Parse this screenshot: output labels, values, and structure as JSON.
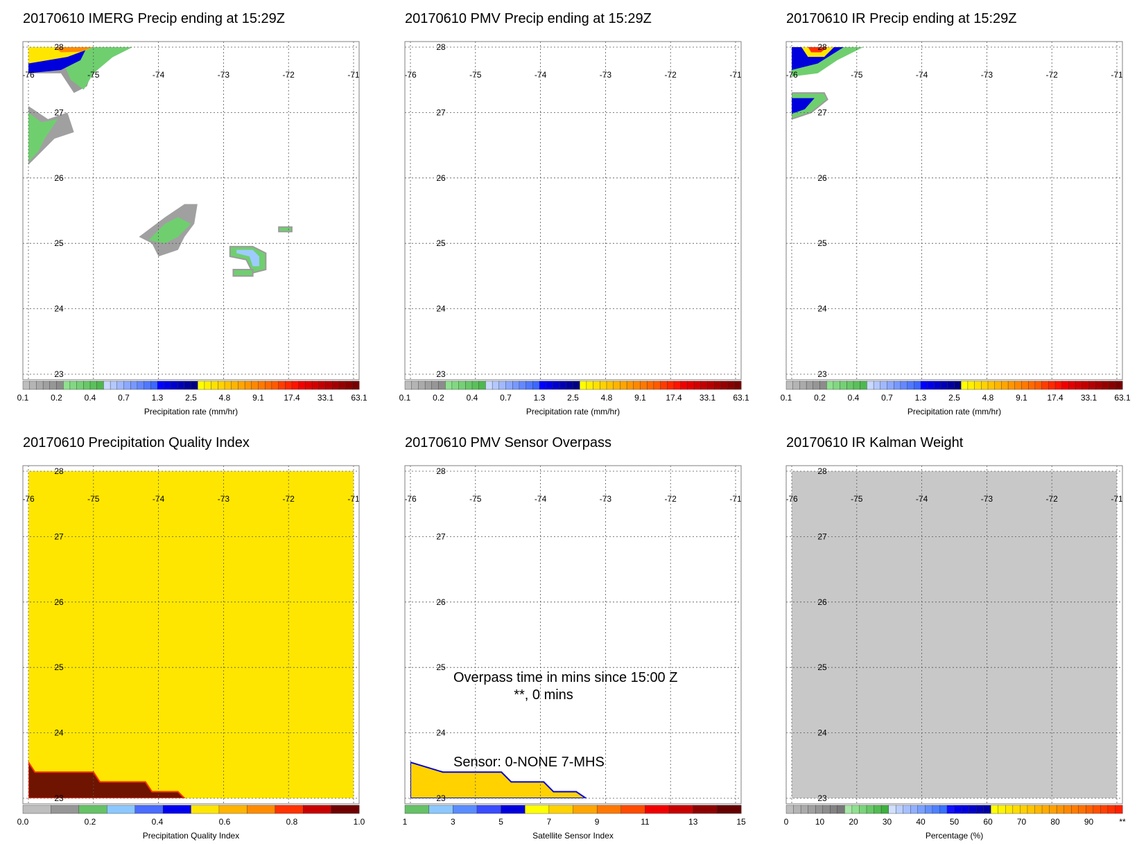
{
  "panels": [
    {
      "id": "imerg",
      "title": "20170610 IMERG Precip ending at 15:29Z",
      "colorbar": "precip"
    },
    {
      "id": "pmv",
      "title": "20170610 PMV Precip ending at 15:29Z",
      "colorbar": "precip"
    },
    {
      "id": "ir",
      "title": "20170610 IR Precip ending at 15:29Z",
      "colorbar": "precip"
    },
    {
      "id": "pqi",
      "title": "20170610 Precipitation Quality Index",
      "colorbar": "quality"
    },
    {
      "id": "overpass",
      "title": "20170610 PMV Sensor Overpass",
      "colorbar": "sensor",
      "annotations": {
        "line1": "Overpass time in mins since 15:00 Z",
        "line2": "**, 0 mins",
        "line3": "Sensor:   0-NONE  7-MHS"
      }
    },
    {
      "id": "kalman",
      "title": "20170610 IR Kalman Weight",
      "colorbar": "percent"
    }
  ],
  "map_axes": {
    "lon_ticks": [
      "-76",
      "-75",
      "-74",
      "-73",
      "-72",
      "-71"
    ],
    "lat_ticks": [
      "28",
      "27",
      "26",
      "25",
      "24",
      "23"
    ],
    "lon_range": [
      -76,
      -71
    ],
    "lat_range": [
      23,
      28
    ],
    "grid": true
  },
  "colorbars": {
    "precip": {
      "label": "Precipitation rate (mm/hr)",
      "tick_labels": [
        "0.1",
        "0.2",
        "0.4",
        "0.7",
        "1.3",
        "2.5",
        "4.8",
        "9.1",
        "17.4",
        "33.1",
        "63.1"
      ],
      "colors": [
        "#bebebe",
        "#b4b4b4",
        "#aaaaaa",
        "#a0a0a0",
        "#969696",
        "#8c8c8c",
        "#8fe08f",
        "#82d882",
        "#75d075",
        "#68c868",
        "#5bc05b",
        "#4eb84e",
        "#c8d8ff",
        "#b4c8ff",
        "#a0b8ff",
        "#8ca8ff",
        "#7898ff",
        "#6488ff",
        "#5078ff",
        "#3c68ff",
        "#0000ff",
        "#0000e6",
        "#0000cd",
        "#0000b4",
        "#00009b",
        "#000082",
        "#ffff00",
        "#fff000",
        "#ffe100",
        "#ffd200",
        "#ffc300",
        "#ffb400",
        "#ffa500",
        "#ff9600",
        "#ff8700",
        "#ff7800",
        "#ff6900",
        "#ff5a00",
        "#ff3c00",
        "#ff2800",
        "#ff1400",
        "#f00000",
        "#e10000",
        "#d20000",
        "#c30000",
        "#b40000",
        "#a50000",
        "#960000",
        "#870000",
        "#780000"
      ]
    },
    "quality": {
      "label": "Precipitation Quality Index",
      "tick_labels": [
        "0.0",
        "0.2",
        "0.4",
        "0.6",
        "0.8",
        "1.0"
      ],
      "colors": [
        "#bebebe",
        "#969696",
        "#66c266",
        "#8cc8ff",
        "#4a6cff",
        "#0000ee",
        "#ffe600",
        "#ffb400",
        "#ff8c00",
        "#ff3200",
        "#c80000",
        "#6e0000"
      ]
    },
    "sensor": {
      "label": "Satellite Sensor Index",
      "tick_labels": [
        "1",
        "3",
        "5",
        "7",
        "9",
        "11",
        "13",
        "15"
      ],
      "colors": [
        "#66c266",
        "#8cc8ff",
        "#5a8cff",
        "#3a4cff",
        "#0000dd",
        "#ffff00",
        "#ffd200",
        "#ffa500",
        "#ff7800",
        "#ff4b00",
        "#f00000",
        "#c80000",
        "#8c0000",
        "#640000"
      ]
    },
    "percent": {
      "label": "Percentage (%)",
      "tick_labels": [
        "0",
        "10",
        "20",
        "30",
        "40",
        "50",
        "60",
        "70",
        "80",
        "90",
        "**"
      ],
      "colors": [
        "#bebebe",
        "#b4b4b4",
        "#aaaaaa",
        "#a0a0a0",
        "#969696",
        "#8c8c8c",
        "#828282",
        "#787878",
        "#a8e8a8",
        "#8fe08f",
        "#7ad47a",
        "#66c866",
        "#52bc52",
        "#3eb03e",
        "#d2e0ff",
        "#bcd0ff",
        "#a6c0ff",
        "#90b0ff",
        "#7aa0ff",
        "#6490ff",
        "#4e80ff",
        "#3870ff",
        "#1010ff",
        "#0000f0",
        "#0000dc",
        "#0000c8",
        "#0000b4",
        "#0000a0",
        "#ffff00",
        "#fff400",
        "#ffe800",
        "#ffdc00",
        "#ffd000",
        "#ffc400",
        "#ffb800",
        "#ffac00",
        "#ffa000",
        "#ff9400",
        "#ff8800",
        "#ff7c00",
        "#ff7000",
        "#ff6000",
        "#ff5000",
        "#ff4000",
        "#ff3000",
        "#ff2000"
      ]
    }
  },
  "colors": {
    "grid": "#555555",
    "frame": "#7f7f7f",
    "pqi_field": "#ffe600",
    "pqi_low": "#6e1400",
    "kalman_field": "#c8c8c8"
  }
}
